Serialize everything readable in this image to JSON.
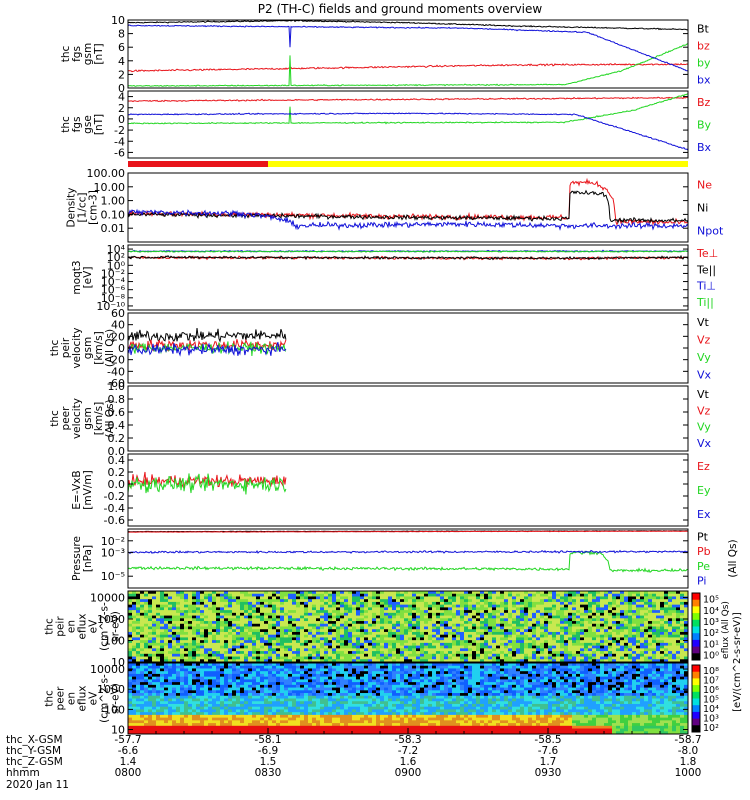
{
  "title": "P2 (TH-C) fields and ground moments overview",
  "colors": {
    "black": "#000000",
    "red": "#e8141a",
    "green": "#22d622",
    "blue": "#1010d8",
    "yellow": "#ffff00"
  },
  "chart_data": [
    {
      "type": "line",
      "id": "fgs",
      "ylabel": [
        "thc",
        "fgs",
        "gsm",
        "[nT]"
      ],
      "ylim": [
        0,
        10
      ],
      "yticks": [
        0,
        2,
        4,
        6,
        8,
        10
      ],
      "series": [
        {
          "name": "Bt",
          "color": "black",
          "kind": "trend",
          "pts": [
            [
              0,
              9.6
            ],
            [
              0.3,
              9.9
            ],
            [
              0.5,
              9.6
            ],
            [
              0.7,
              9.1
            ],
            [
              1,
              8.6
            ]
          ],
          "noise": 0.08
        },
        {
          "name": "bz",
          "color": "red",
          "kind": "trend",
          "pts": [
            [
              0,
              2.5
            ],
            [
              0.4,
              3.0
            ],
            [
              0.7,
              3.4
            ],
            [
              1,
              3.5
            ]
          ],
          "noise": 0.12
        },
        {
          "name": "by",
          "color": "green",
          "kind": "trend",
          "pts": [
            [
              0,
              0.3
            ],
            [
              0.78,
              0.5
            ],
            [
              0.88,
              2.5
            ],
            [
              1,
              6.5
            ]
          ],
          "noise": 0.08,
          "spike": {
            "at": 0.29,
            "to": 4.8
          }
        },
        {
          "name": "bx",
          "color": "blue",
          "kind": "trend",
          "pts": [
            [
              0,
              9.2
            ],
            [
              0.3,
              9.0
            ],
            [
              0.6,
              8.8
            ],
            [
              0.82,
              8.2
            ],
            [
              1,
              2.5
            ]
          ],
          "noise": 0.08,
          "spike": {
            "at": 0.29,
            "to": 6.0
          }
        }
      ]
    },
    {
      "type": "line",
      "id": "fgs_gse",
      "ylabel": [
        "thc",
        "fgs",
        "gse",
        "[nT]"
      ],
      "ylim": [
        -7,
        5
      ],
      "yticks": [
        -6,
        -4,
        -2,
        0,
        2,
        4
      ],
      "series": [
        {
          "name": "Bz",
          "color": "red",
          "kind": "trend",
          "pts": [
            [
              0,
              3.2
            ],
            [
              0.5,
              3.5
            ],
            [
              1,
              3.8
            ]
          ],
          "noise": 0.12
        },
        {
          "name": "By",
          "color": "green",
          "kind": "trend",
          "pts": [
            [
              0,
              -0.8
            ],
            [
              0.78,
              -0.6
            ],
            [
              0.9,
              1.5
            ],
            [
              1,
              4.5
            ]
          ],
          "noise": 0.1,
          "spike": {
            "at": 0.29,
            "to": 2.2
          }
        },
        {
          "name": "Bx",
          "color": "blue",
          "kind": "trend",
          "pts": [
            [
              0,
              0.8
            ],
            [
              0.5,
              1.0
            ],
            [
              0.8,
              0.8
            ],
            [
              1,
              -5.5
            ]
          ],
          "noise": 0.1
        }
      ]
    },
    {
      "type": "log-line",
      "id": "density",
      "ylabel": [
        "Density",
        "[1/cc]",
        "[cm-3]"
      ],
      "ylim": [
        0.001,
        100
      ],
      "yticks": [
        0.01,
        0.1,
        1,
        10,
        100
      ],
      "ytick_labels": [
        "0.01",
        "0.10",
        "1.00",
        "10.00",
        "100.00"
      ],
      "series": [
        {
          "name": "Ne",
          "color": "red",
          "kind": "trend",
          "pts": [
            [
              0,
              0.12
            ],
            [
              0.5,
              0.07
            ],
            [
              0.788,
              0.06
            ],
            [
              0.79,
              20
            ],
            [
              0.83,
              20
            ],
            [
              0.86,
              3
            ],
            [
              0.87,
              0.03
            ],
            [
              1,
              0.025
            ]
          ],
          "noise": 0.18
        },
        {
          "name": "Ni",
          "color": "black",
          "kind": "trend",
          "pts": [
            [
              0,
              0.1
            ],
            [
              0.5,
              0.06
            ],
            [
              0.788,
              0.05
            ],
            [
              0.79,
              4
            ],
            [
              0.85,
              3
            ],
            [
              0.86,
              0.04
            ],
            [
              1,
              0.035
            ]
          ],
          "noise": 0.15
        },
        {
          "name": "Npot",
          "color": "blue",
          "kind": "trend",
          "pts": [
            [
              0,
              0.15
            ],
            [
              0.2,
              0.12
            ],
            [
              0.3,
              0.015
            ],
            [
              0.6,
              0.02
            ],
            [
              0.78,
              0.015
            ],
            [
              1,
              0.015
            ]
          ],
          "noise": 0.2
        }
      ]
    },
    {
      "type": "log-line",
      "id": "temp",
      "ylabel": [
        "moqt3",
        "[eV]"
      ],
      "ylim": [
        1e-11,
        100000.0
      ],
      "yticks": [
        1e-10,
        1e-08,
        1e-06,
        0.0001,
        0.01,
        1,
        100,
        10000
      ],
      "ytick_labels": [
        "10⁻¹⁰",
        "10⁻⁸",
        "10⁻⁶",
        "10⁻⁴",
        "10⁻²",
        "10⁰",
        "10²",
        "10⁴"
      ],
      "series": [
        {
          "name": "Te⊥",
          "color": "red",
          "kind": "trend",
          "pts": [
            [
              0,
              80
            ],
            [
              0.5,
              60
            ],
            [
              0.8,
              50
            ],
            [
              1,
              80
            ]
          ],
          "noise": 0.3
        },
        {
          "name": "Te||",
          "color": "black",
          "kind": "trend",
          "pts": [
            [
              0,
              100
            ],
            [
              0.5,
              70
            ],
            [
              0.8,
              60
            ],
            [
              1,
              90
            ]
          ],
          "noise": 0.3
        },
        {
          "name": "Ti⊥",
          "color": "blue",
          "kind": "trend",
          "pts": [
            [
              0,
              3000
            ],
            [
              1,
              3000
            ]
          ],
          "noise": 0.15
        },
        {
          "name": "Ti||",
          "color": "green",
          "kind": "trend",
          "pts": [
            [
              0,
              2500
            ],
            [
              1,
              2500
            ]
          ],
          "noise": 0.15
        }
      ]
    },
    {
      "type": "line",
      "id": "peir_vel",
      "ylabel": [
        "thc",
        "peir",
        "velocity",
        "gsm",
        "[km/s]",
        "(All Qs)"
      ],
      "ylim": [
        -60,
        60
      ],
      "yticks": [
        -60,
        -40,
        -20,
        0,
        20,
        40,
        60
      ],
      "xend": 0.282,
      "series": [
        {
          "name": "Vt",
          "color": "black",
          "kind": "trend",
          "pts": [
            [
              0,
              20
            ],
            [
              0.282,
              22
            ]
          ],
          "noise": 10
        },
        {
          "name": "Vz",
          "color": "red",
          "kind": "trend",
          "pts": [
            [
              0,
              5
            ],
            [
              0.282,
              5
            ]
          ],
          "noise": 9
        },
        {
          "name": "Vy",
          "color": "green",
          "kind": "trend",
          "pts": [
            [
              0,
              0
            ],
            [
              0.282,
              0
            ]
          ],
          "noise": 9
        },
        {
          "name": "Vx",
          "color": "blue",
          "kind": "trend",
          "pts": [
            [
              0,
              -3
            ],
            [
              0.282,
              -3
            ]
          ],
          "noise": 9
        }
      ]
    },
    {
      "type": "line",
      "id": "peer_vel",
      "ylabel": [
        "thc",
        "peer",
        "velocity",
        "gsm",
        "[km/s]",
        "(All Qs)"
      ],
      "ylim": [
        0,
        1
      ],
      "yticks": [
        0,
        0.2,
        0.4,
        0.6,
        0.8,
        1
      ],
      "ytick_labels": [
        "0.0",
        "0.2",
        "0.4",
        "0.6",
        "0.8",
        "1.0"
      ],
      "series": [
        {
          "name": "Vt",
          "color": "black",
          "kind": "none"
        },
        {
          "name": "Vz",
          "color": "red",
          "kind": "none"
        },
        {
          "name": "Vy",
          "color": "green",
          "kind": "none"
        },
        {
          "name": "Vx",
          "color": "blue",
          "kind": "none"
        }
      ]
    },
    {
      "type": "line",
      "id": "efield",
      "ylabel": [
        "E=-VxB",
        "[mV/m]"
      ],
      "ylim": [
        -0.7,
        0.5
      ],
      "yticks": [
        -0.6,
        -0.4,
        -0.2,
        0,
        0.2,
        0.4
      ],
      "ytick_labels": [
        "-0.6",
        "-0.4",
        "-0.2",
        "0.0",
        "0.2",
        "0.4"
      ],
      "xend": 0.282,
      "series": [
        {
          "name": "Ez",
          "color": "red",
          "kind": "trend",
          "pts": [
            [
              0,
              0.05
            ],
            [
              0.282,
              0.05
            ]
          ],
          "noise": 0.1
        },
        {
          "name": "Ey",
          "color": "green",
          "kind": "trend",
          "pts": [
            [
              0,
              0.0
            ],
            [
              0.282,
              0.0
            ]
          ],
          "noise": 0.13
        },
        {
          "name": "Ex",
          "color": "blue",
          "kind": "none"
        }
      ]
    },
    {
      "type": "log-line",
      "id": "pressure",
      "ylabel": [
        "Pressure",
        "[nPa]"
      ],
      "ylim": [
        1e-06,
        0.1
      ],
      "yticks": [
        1e-05,
        0.001,
        0.01
      ],
      "ytick_labels": [
        "10⁻⁵",
        "10⁻³",
        "10⁻²"
      ],
      "series": [
        {
          "name": "Pt",
          "color": "black",
          "kind": "trend",
          "pts": [
            [
              0,
              0.06
            ],
            [
              1,
              0.07
            ]
          ],
          "noise": 0.02
        },
        {
          "name": "Pb",
          "color": "red",
          "kind": "trend",
          "pts": [
            [
              0,
              0.055
            ],
            [
              1,
              0.065
            ]
          ],
          "noise": 0.02
        },
        {
          "name": "Pe",
          "color": "green",
          "kind": "trend",
          "pts": [
            [
              0,
              5e-05
            ],
            [
              0.788,
              4e-05
            ],
            [
              0.79,
              0.001
            ],
            [
              0.84,
              0.001
            ],
            [
              0.86,
              3e-05
            ],
            [
              1,
              3e-05
            ]
          ],
          "noise": 0.12
        },
        {
          "name": "Pi",
          "color": "blue",
          "kind": "trend",
          "pts": [
            [
              0,
              0.0011
            ],
            [
              1,
              0.0012
            ]
          ],
          "noise": 0.08
        }
      ],
      "right_label": "(All Qs)"
    },
    {
      "type": "heatmap",
      "id": "peir_spec",
      "ylabel": [
        "thc",
        "peir",
        "en",
        "eflux",
        "eV",
        "(cm^2-s-",
        "sr-eV)"
      ],
      "ylim": [
        10,
        20000
      ],
      "yticks": [
        10,
        100,
        1000,
        10000
      ],
      "ytick_labels": [
        "10",
        "100",
        "1000",
        "10000"
      ],
      "note": "ion energy flux spectrogram"
    },
    {
      "type": "heatmap",
      "id": "peer_spec",
      "ylabel": [
        "thc",
        "peer",
        "en",
        "eflux",
        "eV",
        "(cm^2-s-",
        "sr-eV)"
      ],
      "ylim": [
        6,
        20000
      ],
      "yticks": [
        10,
        100,
        1000,
        10000
      ],
      "ytick_labels": [
        "10",
        "100",
        "1000",
        "10000"
      ],
      "note": "electron energy flux spectrogram"
    }
  ],
  "colorbar": {
    "label": "[eV/(cm^2-s-sr-eV)]",
    "upper_label": "eflux (All Qs)",
    "upper_ticks": [
      "10⁵",
      "10⁴",
      "10³",
      "10²",
      "10¹",
      "10⁰"
    ],
    "lower_ticks": [
      "10⁸",
      "10⁷",
      "10⁶",
      "10⁵",
      "10⁴",
      "10³",
      "10²"
    ]
  },
  "xaxis": {
    "row_labels": [
      "thc_X-GSM",
      "thc_Y-GSM",
      "thc_Z-GSM",
      "hhmm",
      "2020 Jan 11"
    ],
    "ticks": [
      {
        "x": "-57.7",
        "y": "-6.6",
        "z": "1.4",
        "t": "0800"
      },
      {
        "x": "-58.1",
        "y": "-6.9",
        "z": "1.5",
        "t": "0830"
      },
      {
        "x": "-58.3",
        "y": "-7.2",
        "z": "1.6",
        "t": "0900"
      },
      {
        "x": "-58.5",
        "y": "-7.6",
        "z": "1.7",
        "t": "0930"
      },
      {
        "x": "-58.7",
        "y": "-8.0",
        "z": "1.8",
        "t": "1000"
      }
    ]
  },
  "mode_bar": {
    "red_end": 0.25
  }
}
